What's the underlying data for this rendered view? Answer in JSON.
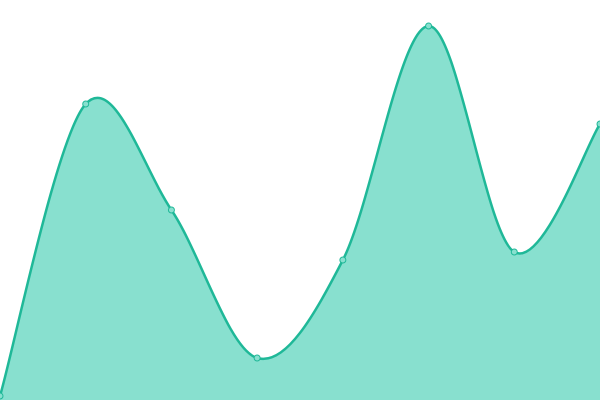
{
  "chart_data": {
    "type": "area",
    "categories": [
      null,
      null,
      null,
      null,
      null,
      null,
      null,
      null
    ],
    "values": [
      1,
      74,
      47.5,
      10.5,
      35,
      93.5,
      37,
      69
    ],
    "color": "#1fb898",
    "fill": "#88e0cf",
    "ylim": [
      0,
      100
    ]
  }
}
